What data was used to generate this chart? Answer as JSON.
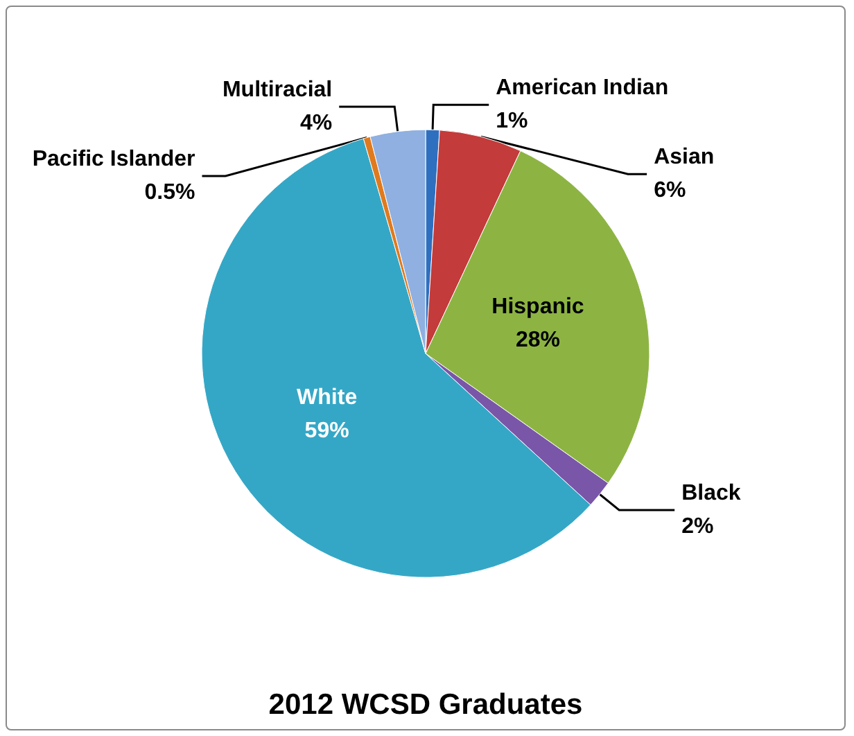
{
  "chart_data": {
    "type": "pie",
    "title": "2012 WCSD Graduates",
    "categories": [
      "American Indian",
      "Asian",
      "Hispanic",
      "Black",
      "White",
      "Pacific Islander",
      "Multiracial"
    ],
    "values": [
      1,
      6,
      28,
      2,
      59,
      0.5,
      4
    ],
    "value_labels": [
      "1%",
      "6%",
      "28%",
      "2%",
      "59%",
      "0.5%",
      "4%"
    ],
    "colors": [
      "#2f6fbf",
      "#c33b3a",
      "#8db443",
      "#7a56a8",
      "#35a7c6",
      "#e07a1f",
      "#8fb0e0"
    ],
    "legend": false
  }
}
